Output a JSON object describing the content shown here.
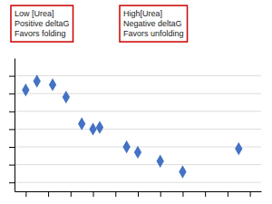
{
  "chart_data": {
    "type": "scatter",
    "x": [
      0.0,
      0.5,
      1.2,
      1.8,
      2.5,
      3.0,
      3.3,
      4.5,
      5.0,
      6.0,
      7.0,
      9.5
    ],
    "y": [
      2.2,
      2.7,
      2.5,
      1.8,
      0.3,
      0.0,
      0.1,
      -1.0,
      -1.3,
      -1.8,
      -2.4,
      -1.1
    ],
    "color": "#4472C4",
    "marker": "diamond",
    "xlim": [
      -0.5,
      10.5
    ],
    "ylim": [
      -3.5,
      4.0
    ],
    "xticks": [
      0,
      1,
      2,
      3,
      4,
      5,
      6,
      7,
      8,
      9,
      10
    ],
    "yticks": [
      -3,
      -2,
      -1,
      0,
      1,
      2,
      3
    ],
    "grid": true,
    "tick_labels": false,
    "annotations": [
      "Low [Urea]\nPositive deltaG\nFavors folding",
      "High[Urea]\nNegative deltaG\nFavors unfolding"
    ]
  }
}
